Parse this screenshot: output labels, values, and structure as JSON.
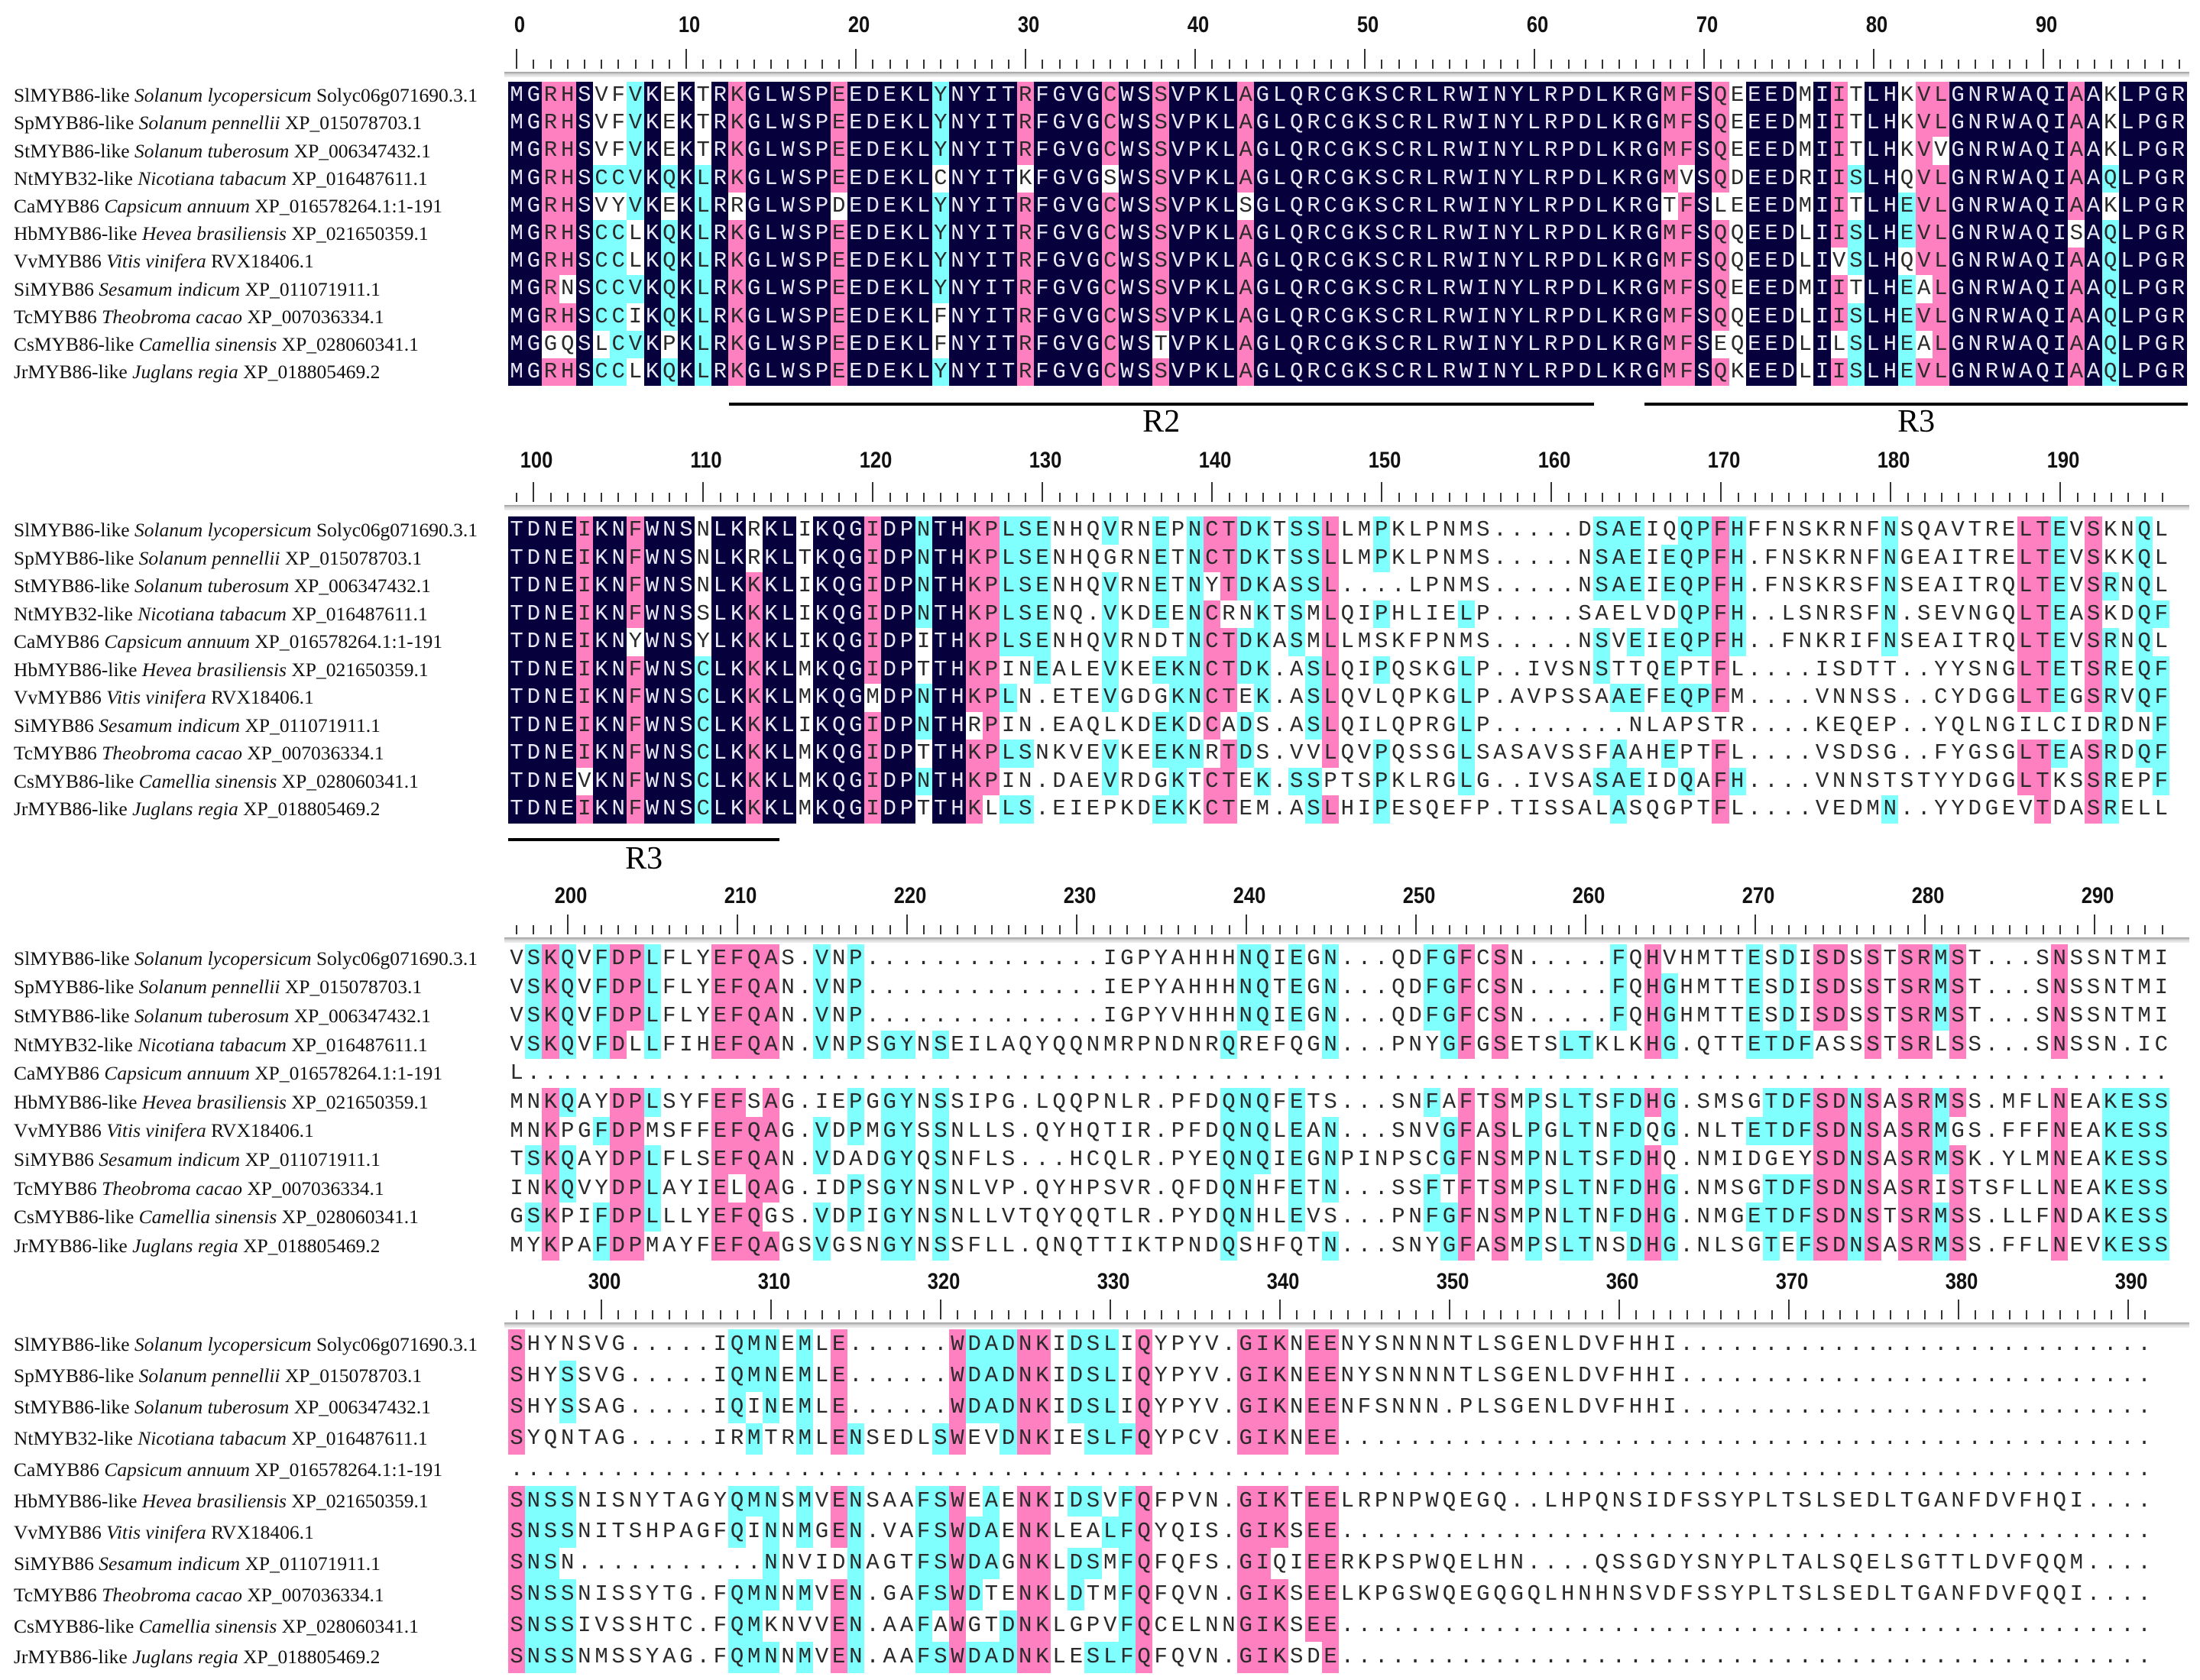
{
  "species": [
    {
      "name": "SlMYB86-like",
      "species": "Solanum lycopersicum",
      "accession": "Solyc06g071690.3.1"
    },
    {
      "name": "SpMYB86-like",
      "species": "Solanum pennellii",
      "accession": "XP_015078703.1"
    },
    {
      "name": "StMYB86-like",
      "species": "Solanum tuberosum",
      "accession": "XP_006347432.1"
    },
    {
      "name": "NtMYB32-like",
      "species": "Nicotiana tabacum",
      "accession": "XP_016487611.1"
    },
    {
      "name": "CaMYB86",
      "species": "Capsicum annuum",
      "accession": "XP_016578264.1:1-191"
    },
    {
      "name": "HbMYB86-like",
      "species": "Hevea brasiliensis",
      "accession": "XP_021650359.1"
    },
    {
      "name": "VvMYB86",
      "species": "Vitis vinifera",
      "accession": "RVX18406.1"
    },
    {
      "name": "SiMYB86",
      "species": "Sesamum indicum",
      "accession": "XP_011071911.1"
    },
    {
      "name": "TcMYB86",
      "species": "Theobroma cacao",
      "accession": "XP_007036334.1"
    },
    {
      "name": "CsMYB86-like",
      "species": "Camellia sinensis",
      "accession": "XP_028060341.1"
    },
    {
      "name": "JrMYB86-like",
      "species": "Juglans regia",
      "accession": "XP_018805469.2"
    }
  ],
  "blocks": [
    {
      "ruler_start": 0,
      "rows": [
        "MGRHSVFVKEKTRKGLWSPEEDEKLYNYITRFGVGCWSSVPKLAGLQRCGKSCRLRWINYLRPDLKRGMFSQEEEDMIITLHKVLGNRWAQIAAKLPGR",
        "MGRHSVFVKEKTRKGLWSPEEDEKLYNYITRFGVGCWSSVPKLAGLQRCGKSCRLRWINYLRPDLKRGMFSQEEEDMIITLHKVLGNRWAQIAAKLPGR",
        "MGRHSVFVKEKTRKGLWSPEEDEKLYNYITRFGVGCWSSVPKLAGLQRCGKSCRLRWINYLRPDLKRGMFSQEEEDMIITLHKVVGNRWAQIAAKLPGR",
        "MGRHSCCVKQKLRKGLWSPEEDEKLCNYITKFGVGSWSSVPKLAGLQRCGKSCRLRWINYLRPDLKRGMVSQDEEDRIISLHQVLGNRWAQIAAQLPGR",
        "MGRHSVYVKEKLRRGLWSPDEDEKLYNYITRFGVGCWSSVPKLSGLQRCGKSCRLRWINYLRPDLKRGTFSLEEEDMIITLHEVLGNRWAQIAAKLPGR",
        "MGRHSCCLKQKLRKGLWSPEEDEKLYNYITRFGVGCWSSVPKLAGLQRCGKSCRLRWINYLRPDLKRGMFSQQEEDLIISLHEVLGNRWAQISAQLPGR",
        "MGRHSCCLKQKLRKGLWSPEEDEKLYNYITRFGVGCWSSVPKLAGLQRCGKSCRLRWINYLRPDLKRGMFSQQEEDLIVSLHQVLGNRWAQIAAQLPGR",
        "MGRNSCCVKQKLRKGLWSPEEDEKLYNYITRFGVGCWSSVPKLAGLQRCGKSCRLRWINYLRPDLKRGMFSQEEEDMIITLHEALGNRWAQIAAQLPGR",
        "MGRHSCCIKQKLRKGLWSPEEDEKLFNYITRFGVGCWSSVPKLAGLQRCGKSCRLRWINYLRPDLKRGMFSQQEEDLIISLHEVLGNRWAQIAAQLPGR",
        "MGGQSLCVKPKLRKGLWSPEEDEKLFNYITRFGVGCWSTVPKLAGLQRCGKSCRLRWINYLRPDLKRGMFSEQEEDLILSLHEALGNRWAQIAAQLPGR",
        "MGRHSCCLKQKLRKGLWSPEEDEKLYNYITRFGVGCWSSVPKLAGLQRCGKSCRLRWINYLRPDLKRGMFSQKEEDLIISLHEVLGNRWAQIAAQLPGR"
      ]
    },
    {
      "ruler_start": 99,
      "rows": [
        "TDNEIKNFWNSNLKRKLIKQGIDPNTHKPLSENHQVRNEPNCTDKTSSLLMPKLPNMS.....DSAEIQQPFHFFNSKRNFNSQAVTRELTEVSKNQL",
        "TDNEIKNFWNSNLKRKLTKQGIDPNTHKPLSENHQGRNETNCTDKTSSLLMPKLPNMS.....NSAEIEQPFH.FNSKRNFNGEAITRELTEVSKKQL",
        "TDNEIKNFWNSNLKKKLIKQGIDPNTHKPLSENHQVRNETNYTDKASSL....LPNMS.....NSAEIEQPFH.FNSKRSFNSEAITRQLTEVSRNQL",
        "TDNEIKNFWNSSLKKKLIKQGIDPNTHKPLSENQ.VKDEENCRNKTSMLQIPHLIELP.....SAELVDQPFH..LSNRSFN.SEVNGQLTEASKDQF",
        "TDNEIKNYWNSYLKKKLIKQGIDPITHKPLSENHQVRNDTNCTDKASMLLMSKFPNMS.....NSVEIEQPFH..FNKRIFNSEAITRQLTEVSRNQL",
        "TDNEIKNFWNSCLKKKLMKQGIDPTTHKPINEALEVKEEKNCTDK.ASLQIPQSKGLP..IVSNSTTQEPTFL....ISDTT..YYSNGLTETSREQF",
        "TDNEIKNFWNSCLKKKLMKQGMDPNTHKPLN.ETEVGDGKNCTEK.ASLQVLQPKGLP.AVPSSAAEFEQPFM....VNNSS..CYDGGLTEGSRVQF",
        "TDNEIKNFWNSCLKKKLIKQGIDPNTHRPIN.EAQLKDEKDCADS.ASLQILQPRGLP........NLAPSTR....KEQEP..YQLNGILCIDRDNF",
        "TDNEIKNFWNSCLKKKLMKQGIDPTTHKPLSNKVEVKEEKNRTDS.VVLQVPQSSGLSASAVSSFAAHEPTFL....VSDSG..FYGSGLTEASRDQF",
        "TDNEVKNFWNSCLKKKLMKQGIDPNTHKPIN.DAEVRDGKTCTEK.SSPTSPKLRGLG..IVSASAEIDQAFH....VNNSTSTYYDGGLTKSSREPF",
        "TDNEIKNFWNSCLKKKLMKQGIDPTTHKLLS.EIEPKDEKKCTEM.ASLHIPESQEFP.TISSALASQGPTFL....VEDMN..YYDGEVTDASRELL"
      ]
    },
    {
      "ruler_start": 197,
      "rows": [
        "VSKQVFDPLFLYEFQAS.VNP..............IGPYAHHHNQIEGN...QDFGFCSN.....FQHVHMTTESDISDSSTSRMST...SNSSNTMI",
        "VSKQVFDPLFLYEFQAN.VNP..............IEPYAHHHNQTEGN...QDFGFCSN.....FQHGHMTTESDISDSSTSRMST...SNSSNTMI",
        "VSKQVFDPLFLYEFQAN.VNP..............IGPYVHHHNQIEGN...QDFGFCSN.....FQHGHMTTESDISDSSTSRMST...SNSSNTMI",
        "VSKQVFDLLFIHEFQAN.VNPSGYNSEILAQYQQNMRPNDNRQREFQGN...PNYGFGSETSLTKLKHG.QTTETDFASSSTSRLSS...SNSSN.IC",
        "L",
        "MNKQAYDPLSYFEFSAG.IEPGGYNSSIPG.LQQPNLR.PFDQNQFETS...SNFAFTSMPSLTSFDHG.SMSGTDFSDNSASRMSS.MFLNEAKESS",
        "MNKPGFDPMSFFEFQAG.VDPMGYSSNLLS.QYHQTIR.PFDQNQLEAN...SNVGFASLPGLTNFDQG.NLTETDFSDNSASRMGS.FFFNEAKESS",
        "TSKQAYDPLFLSEFQAN.VDADGYQSNFLS...HCQLR.PYEQNQIEGNPINPSCGFNSMPNLTSFDHQ.NMIDGEYSDNSASRMSK.YLMNEAKESS",
        "INKQVYDPLAYIELQAG.IDPSGYNSNLVP.QYHPSVR.QFDQNHFETN...SSFTFTSMPSLTNFDHG.NMSGTDFSDNSASRISTSFLLNEAKESS",
        "GSKPIFDPLLLYEFQGS.VDPIGYNSNLLVTQYQQTLR.PYDQNHLEVS...PNFGFNSMPNLTNFDHG.NMGETDFSDNSTSRMSS.LLFNDAKESS",
        "MYKPAFDPMAYFEFQAGSVGSNGYNSSFLL.QNQTTIKTPNDQSHFQTN...SNYGFASMPSLTNSDHG.NLSGTEFSDNSASRMSS.FFLNEVKESS"
      ]
    },
    {
      "ruler_start": 295,
      "rows": [
        "SHYNSVG.....IQMNEMLE......WDADNKIDSLIQYPYV.GIKNEENYSNNNNTLSGENLDVFHHI",
        "SHYSSVG.....IQMNEMLE......WDADNKIDSLIQYPYV.GIKNEENYSNNNNTLSGENLDVFHHI",
        "SHYSSAG.....IQINEMLE......WDADNKIDSLIQYPYV.GIKNEENFSNNN.PLSGENLDVFHHI",
        "SYQNTAG.....IRMTRMLENSEDLSWEVDNKIESLFQYPCV.GIKNEE",
        ".",
        "SNSSNISNYTAGYQMNSMVENSAAFSWEAENKIDSVFQFPVN.GIKTEELRPNPWQEGQ..LHPQNSIDFSSYPLTSLSEDLTGANFDVFHQI",
        "SNSSNITSHPAGFQINNMGEN.VAFSWDAENKLEALFQYQIS.GIKSEE",
        "SNSN...........NNVIDNAGTFSWDAGNKLDSMFQFQFS.GIQIEERKPSPWQELHN....QSSGDYSNYPLTALSQELSGTTLDVFQQM",
        "SNSSNISSYTG.FQMNNMVEN.GAFSWDTENKLDTMFQFQVN.GIKSEELKPGSWQEGQGQLHNHNSVDFSSYPLTSLSEDLTGANFDVFQQI",
        "SNSSIVSSHTC.FQMKNVVEN.AAFAWGTDNKLGPVFQCELNNGIKSEE",
        "SNSSNMSSYAG.FQMNNMVEN.AAFSWDADNKLESLFQFQVN.GIKSDE"
      ]
    }
  ],
  "domains": [
    {
      "label": "R2",
      "block": 0,
      "from_col": 13,
      "to_col": 63
    },
    {
      "label": "R3",
      "block": 0,
      "from_col": 67,
      "to_col": 98
    },
    {
      "label": "R3",
      "block": 1,
      "from_col": 0,
      "to_col": 15
    }
  ],
  "colors": {
    "identical_100": "#06003c",
    "high_75": "#ff80c0",
    "mid_50": "#80ffff"
  }
}
